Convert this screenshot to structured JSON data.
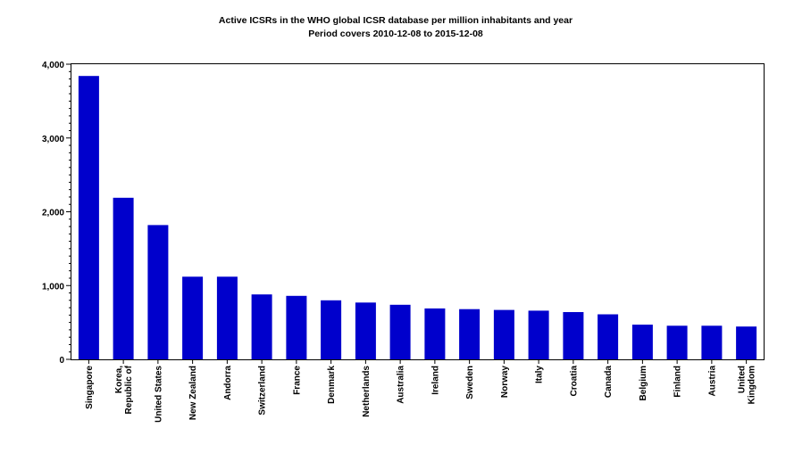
{
  "chart_data": {
    "type": "bar",
    "title": "Active ICSRs in the WHO global ICSR database per million inhabitants and year",
    "subtitle": "Period covers 2010-12-08 to 2015-12-08",
    "xlabel": "",
    "ylabel": "",
    "ylim": [
      0,
      4000
    ],
    "yticks": [
      0,
      1000,
      2000,
      3000,
      4000
    ],
    "ytick_labels": [
      "0",
      "1,000",
      "2,000",
      "3,000",
      "4,000"
    ],
    "grid": false,
    "legend": "none",
    "bar_color": "#0000cc",
    "categories": [
      [
        "Singapore"
      ],
      [
        "Korea,",
        "Republic of"
      ],
      [
        "United States"
      ],
      [
        "New Zealand"
      ],
      [
        "Andorra"
      ],
      [
        "Switzerland"
      ],
      [
        "France"
      ],
      [
        "Denmark"
      ],
      [
        "Netherlands"
      ],
      [
        "Australia"
      ],
      [
        "Ireland"
      ],
      [
        "Sweden"
      ],
      [
        "Norway"
      ],
      [
        "Italy"
      ],
      [
        "Croatia"
      ],
      [
        "Canada"
      ],
      [
        "Belgium"
      ],
      [
        "Finland"
      ],
      [
        "Austria"
      ],
      [
        "United",
        "Kingdom"
      ]
    ],
    "values": [
      3840,
      2190,
      1820,
      1120,
      1120,
      880,
      860,
      800,
      770,
      740,
      690,
      680,
      670,
      660,
      640,
      610,
      470,
      455,
      455,
      445
    ]
  }
}
